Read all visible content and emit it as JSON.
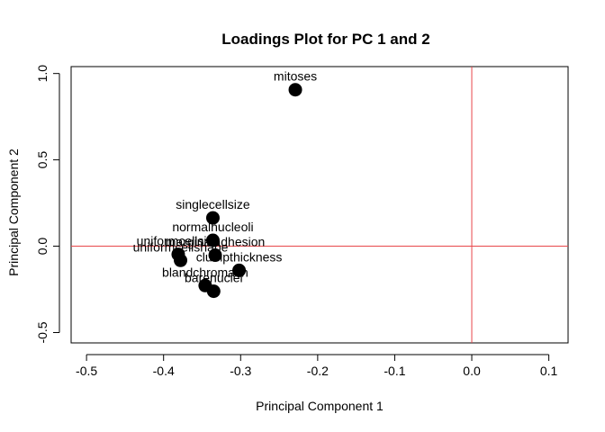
{
  "chart_data": {
    "type": "scatter",
    "title": "Loadings Plot for PC 1 and 2",
    "xlabel": "Principal Component 1",
    "ylabel": "Principal Component 2",
    "xlim": [
      -0.52,
      0.125
    ],
    "ylim": [
      -0.56,
      1.04
    ],
    "xticks": [
      -0.5,
      -0.4,
      -0.3,
      -0.2,
      -0.1,
      0.0,
      0.1
    ],
    "xtick_labels": [
      "-0.5",
      "-0.4",
      "-0.3",
      "-0.2",
      "-0.1",
      "0.0",
      "0.1"
    ],
    "yticks": [
      -0.5,
      0.0,
      0.5,
      1.0
    ],
    "ytick_labels": [
      "-0.5",
      "0.0",
      "0.5",
      "1.0"
    ],
    "grid": false,
    "point_color": "#000000",
    "reference_lines": {
      "x": 0.0,
      "y": 0.0,
      "color": "#e8474b"
    },
    "points": [
      {
        "label": "clumpthickness",
        "x": -0.302,
        "y": -0.14
      },
      {
        "label": "uniformcellsize",
        "x": -0.381,
        "y": -0.047
      },
      {
        "label": "uniformcellshape",
        "x": -0.378,
        "y": -0.082
      },
      {
        "label": "marginaladhesion",
        "x": -0.333,
        "y": -0.052
      },
      {
        "label": "singlecellsize",
        "x": -0.336,
        "y": 0.164
      },
      {
        "label": "barenuclei",
        "x": -0.335,
        "y": -0.261
      },
      {
        "label": "blandchromatin",
        "x": -0.346,
        "y": -0.228
      },
      {
        "label": "normalnucleoli",
        "x": -0.336,
        "y": 0.034
      },
      {
        "label": "mitoses",
        "x": -0.229,
        "y": 0.906
      }
    ]
  }
}
